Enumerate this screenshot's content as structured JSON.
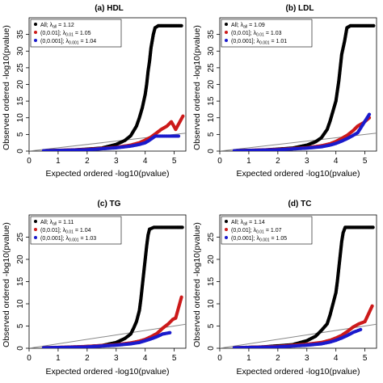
{
  "chart_data": [
    {
      "type": "scatter",
      "title": "(a) HDL",
      "xlabel": "Expected ordered -log10(pvalue)",
      "ylabel": "Observed ordered -log10(pvalue)",
      "xlim": [
        0,
        5.4
      ],
      "ylim": [
        0,
        40
      ],
      "x_ticks": [
        0,
        1,
        2,
        3,
        4,
        5
      ],
      "y_ticks": [
        0,
        5,
        10,
        15,
        20,
        25,
        30,
        35
      ],
      "reference_line": "y = x",
      "legend_position": "top-left",
      "series": [
        {
          "name": "All; λall = 1.12",
          "label_main": "All; λ",
          "label_sub": "all",
          "label_tail": " = 1.12",
          "color": "#000000",
          "points": [
            [
              0.5,
              0.1
            ],
            [
              1.5,
              0.3
            ],
            [
              2.5,
              0.9
            ],
            [
              3.0,
              2.0
            ],
            [
              3.3,
              3.2
            ],
            [
              3.5,
              4.6
            ],
            [
              3.7,
              7.5
            ],
            [
              3.8,
              10.0
            ],
            [
              3.9,
              13.0
            ],
            [
              4.0,
              17.0
            ],
            [
              4.05,
              20.0
            ],
            [
              4.1,
              24.0
            ],
            [
              4.15,
              27.0
            ],
            [
              4.2,
              31.0
            ],
            [
              4.28,
              35.0
            ],
            [
              4.34,
              37.0
            ],
            [
              4.45,
              37.6
            ],
            [
              4.6,
              37.6
            ],
            [
              4.8,
              37.6
            ],
            [
              5.0,
              37.6
            ],
            [
              5.25,
              37.6
            ]
          ]
        },
        {
          "name": "(0,0.01]; λ0.01 = 1.05",
          "label_main": "(0,0.01]; λ",
          "label_sub": "0.01",
          "label_tail": " = 1.05",
          "color": "#cc1a1a",
          "points": [
            [
              0.5,
              0.1
            ],
            [
              2.0,
              0.5
            ],
            [
              3.0,
              1.1
            ],
            [
              3.5,
              1.8
            ],
            [
              3.8,
              2.5
            ],
            [
              4.0,
              3.3
            ],
            [
              4.2,
              4.2
            ],
            [
              4.4,
              5.5
            ],
            [
              4.55,
              6.5
            ],
            [
              4.75,
              7.5
            ],
            [
              4.9,
              8.8
            ],
            [
              5.05,
              6.5
            ],
            [
              5.3,
              10.5
            ]
          ]
        },
        {
          "name": "(0,0.001]; λ0.001 = 1.04",
          "label_main": "(0,0.001]; λ",
          "label_sub": "0.001",
          "label_tail": " = 1.04",
          "color": "#1a1acc",
          "points": [
            [
              0.5,
              0.1
            ],
            [
              2.0,
              0.4
            ],
            [
              3.0,
              1.0
            ],
            [
              3.5,
              1.5
            ],
            [
              3.8,
              2.0
            ],
            [
              4.0,
              2.5
            ],
            [
              4.1,
              3.0
            ],
            [
              4.2,
              3.6
            ],
            [
              4.35,
              4.5
            ],
            [
              5.15,
              4.5
            ]
          ]
        }
      ]
    },
    {
      "type": "scatter",
      "title": "(b) LDL",
      "xlabel": "Expected ordered -log10(pvalue)",
      "ylabel": "Observed ordered -log10(pvalue)",
      "xlim": [
        0,
        5.4
      ],
      "ylim": [
        0,
        40
      ],
      "x_ticks": [
        0,
        1,
        2,
        3,
        4,
        5
      ],
      "y_ticks": [
        0,
        5,
        10,
        15,
        20,
        25,
        30,
        35
      ],
      "reference_line": "y = x",
      "legend_position": "top-left",
      "series": [
        {
          "name": "All; λall = 1.09",
          "label_main": "All; λ",
          "label_sub": "all",
          "label_tail": " = 1.09",
          "color": "#000000",
          "points": [
            [
              0.5,
              0.1
            ],
            [
              1.5,
              0.3
            ],
            [
              2.5,
              0.9
            ],
            [
              3.0,
              1.8
            ],
            [
              3.3,
              2.8
            ],
            [
              3.5,
              4.0
            ],
            [
              3.7,
              6.5
            ],
            [
              3.8,
              9.0
            ],
            [
              3.9,
              12.0
            ],
            [
              4.0,
              15.0
            ],
            [
              4.05,
              18.0
            ],
            [
              4.1,
              21.0
            ],
            [
              4.15,
              25.0
            ],
            [
              4.2,
              29.0
            ],
            [
              4.3,
              33.0
            ],
            [
              4.38,
              37.0
            ],
            [
              4.5,
              37.6
            ],
            [
              4.7,
              37.6
            ],
            [
              4.9,
              37.6
            ],
            [
              5.1,
              37.6
            ],
            [
              5.3,
              37.6
            ]
          ]
        },
        {
          "name": "(0,0.01]; λ0.01 = 1.03",
          "label_main": "(0,0.01]; λ",
          "label_sub": "0.01",
          "label_tail": " = 1.03",
          "color": "#cc1a1a",
          "points": [
            [
              0.5,
              0.1
            ],
            [
              2.0,
              0.5
            ],
            [
              3.0,
              1.0
            ],
            [
              3.5,
              1.6
            ],
            [
              3.8,
              2.2
            ],
            [
              4.0,
              2.9
            ],
            [
              4.2,
              3.8
            ],
            [
              4.4,
              4.8
            ],
            [
              4.6,
              6.2
            ],
            [
              4.75,
              7.5
            ],
            [
              4.95,
              8.5
            ],
            [
              5.15,
              10.0
            ]
          ]
        },
        {
          "name": "(0,0.001]; λ0.001 = 1.01",
          "label_main": "(0,0.001]; λ",
          "label_sub": "0.001",
          "label_tail": " = 1.01",
          "color": "#1a1acc",
          "points": [
            [
              0.5,
              0.1
            ],
            [
              2.0,
              0.4
            ],
            [
              3.0,
              0.9
            ],
            [
              3.5,
              1.3
            ],
            [
              3.8,
              1.8
            ],
            [
              4.0,
              2.3
            ],
            [
              4.2,
              3.0
            ],
            [
              4.4,
              3.8
            ],
            [
              4.55,
              4.5
            ],
            [
              4.75,
              5.5
            ],
            [
              5.15,
              11.0
            ]
          ]
        }
      ]
    },
    {
      "type": "scatter",
      "title": "(c) TG",
      "xlabel": "Expected ordered -log10(pvalue)",
      "ylabel": "Observed ordered -log10(pvalue)",
      "xlim": [
        0,
        5.4
      ],
      "ylim": [
        0,
        30
      ],
      "x_ticks": [
        0,
        1,
        2,
        3,
        4,
        5
      ],
      "y_ticks": [
        0,
        5,
        10,
        15,
        20,
        25
      ],
      "reference_line": "y = x",
      "legend_position": "top-left",
      "series": [
        {
          "name": "All; λall = 1.11",
          "label_main": "All; λ",
          "label_sub": "all",
          "label_tail": " = 1.11",
          "color": "#000000",
          "points": [
            [
              0.5,
              0.1
            ],
            [
              1.5,
              0.2
            ],
            [
              2.5,
              0.6
            ],
            [
              3.0,
              1.3
            ],
            [
              3.3,
              2.2
            ],
            [
              3.5,
              3.2
            ],
            [
              3.6,
              4.5
            ],
            [
              3.7,
              6.0
            ],
            [
              3.8,
              8.5
            ],
            [
              3.85,
              11.0
            ],
            [
              3.9,
              14.0
            ],
            [
              3.95,
              17.0
            ],
            [
              4.0,
              20.0
            ],
            [
              4.05,
              23.0
            ],
            [
              4.1,
              25.5
            ],
            [
              4.15,
              26.8
            ],
            [
              4.3,
              27.2
            ],
            [
              4.5,
              27.2
            ],
            [
              4.7,
              27.2
            ],
            [
              4.9,
              27.2
            ],
            [
              5.1,
              27.2
            ],
            [
              5.28,
              27.2
            ]
          ]
        },
        {
          "name": "(0,0.01]; λ0.01 = 1.04",
          "label_main": "(0,0.01]; λ",
          "label_sub": "0.01",
          "label_tail": " = 1.04",
          "color": "#cc1a1a",
          "points": [
            [
              0.5,
              0.1
            ],
            [
              2.0,
              0.4
            ],
            [
              3.0,
              0.8
            ],
            [
              3.5,
              1.2
            ],
            [
              3.8,
              1.6
            ],
            [
              4.0,
              2.0
            ],
            [
              4.2,
              2.6
            ],
            [
              4.4,
              3.3
            ],
            [
              4.6,
              4.5
            ],
            [
              4.8,
              5.5
            ],
            [
              4.95,
              6.5
            ],
            [
              5.05,
              6.8
            ],
            [
              5.25,
              11.5
            ]
          ]
        },
        {
          "name": "(0,0.001]; λ0.001 = 1.03",
          "label_main": "(0,0.001]; λ",
          "label_sub": "0.001",
          "label_tail": " = 1.03",
          "color": "#1a1acc",
          "points": [
            [
              0.5,
              0.1
            ],
            [
              2.0,
              0.3
            ],
            [
              3.0,
              0.7
            ],
            [
              3.5,
              1.0
            ],
            [
              3.8,
              1.3
            ],
            [
              4.0,
              1.7
            ],
            [
              4.2,
              2.1
            ],
            [
              4.4,
              2.6
            ],
            [
              4.6,
              3.2
            ],
            [
              4.85,
              3.5
            ]
          ]
        }
      ]
    },
    {
      "type": "scatter",
      "title": "(d) TC",
      "xlabel": "Expected ordered -log10(pvalue)",
      "ylabel": "Observed ordered -log10(pvalue)",
      "xlim": [
        0,
        5.4
      ],
      "ylim": [
        0,
        30
      ],
      "x_ticks": [
        0,
        1,
        2,
        3,
        4,
        5
      ],
      "y_ticks": [
        0,
        5,
        10,
        15,
        20,
        25
      ],
      "reference_line": "y = x",
      "legend_position": "top-left",
      "series": [
        {
          "name": "All; λall = 1.14",
          "label_main": "All; λ",
          "label_sub": "all",
          "label_tail": " = 1.14",
          "color": "#000000",
          "points": [
            [
              0.5,
              0.1
            ],
            [
              1.5,
              0.3
            ],
            [
              2.5,
              0.8
            ],
            [
              3.0,
              1.7
            ],
            [
              3.3,
              2.7
            ],
            [
              3.5,
              4.0
            ],
            [
              3.7,
              5.5
            ],
            [
              3.8,
              7.5
            ],
            [
              3.9,
              10.0
            ],
            [
              4.0,
              12.5
            ],
            [
              4.05,
              15.0
            ],
            [
              4.1,
              18.0
            ],
            [
              4.15,
              21.0
            ],
            [
              4.2,
              24.0
            ],
            [
              4.25,
              26.0
            ],
            [
              4.32,
              27.2
            ],
            [
              4.5,
              27.2
            ],
            [
              4.7,
              27.2
            ],
            [
              4.9,
              27.2
            ],
            [
              5.1,
              27.2
            ],
            [
              5.28,
              27.2
            ]
          ]
        },
        {
          "name": "(0,0.01]; λ0.01 = 1.07",
          "label_main": "(0,0.01]; λ",
          "label_sub": "0.01",
          "label_tail": " = 1.07",
          "color": "#cc1a1a",
          "points": [
            [
              0.5,
              0.1
            ],
            [
              2.0,
              0.4
            ],
            [
              3.0,
              0.9
            ],
            [
              3.5,
              1.3
            ],
            [
              3.8,
              1.8
            ],
            [
              4.0,
              2.3
            ],
            [
              4.2,
              2.9
            ],
            [
              4.4,
              3.8
            ],
            [
              4.6,
              4.8
            ],
            [
              4.8,
              5.5
            ],
            [
              5.0,
              6.0
            ],
            [
              5.25,
              9.5
            ]
          ]
        },
        {
          "name": "(0,0.001]; λ0.001 = 1.05",
          "label_main": "(0,0.001]; λ",
          "label_sub": "0.001",
          "label_tail": " = 1.05",
          "color": "#1a1acc",
          "points": [
            [
              0.5,
              0.1
            ],
            [
              2.0,
              0.3
            ],
            [
              3.0,
              0.7
            ],
            [
              3.5,
              1.0
            ],
            [
              3.8,
              1.4
            ],
            [
              4.0,
              1.8
            ],
            [
              4.2,
              2.3
            ],
            [
              4.4,
              2.9
            ],
            [
              4.6,
              3.6
            ],
            [
              4.85,
              4.2
            ]
          ]
        }
      ]
    }
  ]
}
